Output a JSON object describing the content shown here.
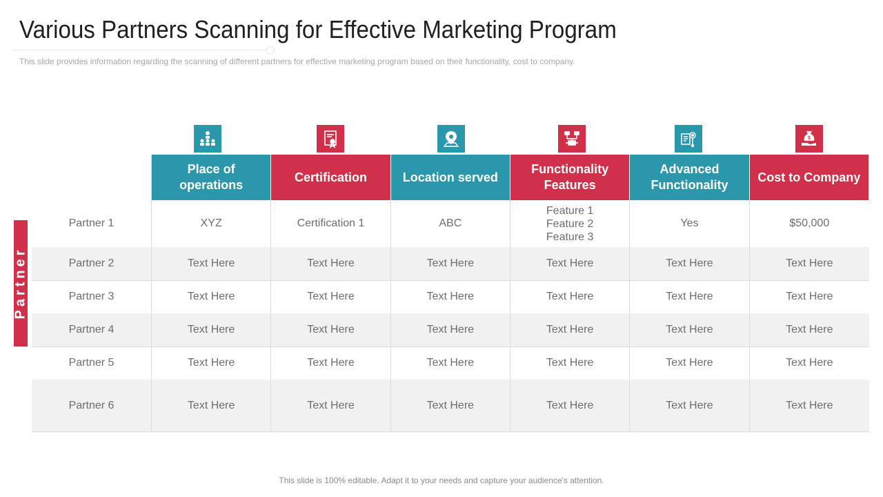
{
  "title": "Various Partners Scanning for Effective Marketing Program",
  "subtitle": "This slide provides  information  regarding  the scanning of  different  partners for effective  marketing program  based on their functionality, cost to company.",
  "colors": {
    "teal": "#2b97ab",
    "red": "#d1304a",
    "shade": "#f1f1f1"
  },
  "columns": [
    {
      "label_l1": "Place of",
      "label_l2": "operations",
      "color": "teal",
      "icon": "people-network-icon"
    },
    {
      "label_l1": "Certification",
      "label_l2": "",
      "color": "red",
      "icon": "certificate-icon"
    },
    {
      "label_l1": "Location served",
      "label_l2": "",
      "color": "teal",
      "icon": "location-pin-icon"
    },
    {
      "label_l1": "Functionality",
      "label_l2": "Features",
      "color": "red",
      "icon": "circuit-board-icon"
    },
    {
      "label_l1": "Advanced",
      "label_l2": "Functionality",
      "color": "teal",
      "icon": "gear-document-icon"
    },
    {
      "label_l1": "Cost to Company",
      "label_l2": "",
      "color": "red",
      "icon": "money-bag-hand-icon"
    }
  ],
  "side_label": "Partner",
  "rows": [
    {
      "name": "Partner 1",
      "cells": [
        "XYZ",
        "Certification 1",
        "ABC",
        [
          "Feature 1",
          "Feature 2",
          "Feature 3"
        ],
        "Yes",
        "$50,000"
      ]
    },
    {
      "name": "Partner 2",
      "cells": [
        "Text Here",
        "Text Here",
        "Text Here",
        "Text Here",
        "Text Here",
        "Text Here"
      ]
    },
    {
      "name": "Partner 3",
      "cells": [
        "Text Here",
        "Text Here",
        "Text Here",
        "Text Here",
        "Text Here",
        "Text Here"
      ]
    },
    {
      "name": "Partner 4",
      "cells": [
        "Text Here",
        "Text Here",
        "Text Here",
        "Text Here",
        "Text Here",
        "Text Here"
      ]
    },
    {
      "name": "Partner 5",
      "cells": [
        "Text Here",
        "Text Here",
        "Text Here",
        "Text Here",
        "Text Here",
        "Text Here"
      ]
    },
    {
      "name": "Partner 6",
      "cells": [
        "Text Here",
        "Text Here",
        "Text Here",
        "Text Here",
        "Text Here",
        "Text Here"
      ]
    }
  ],
  "footer": "This slide is 100% editable. Adapt it to your needs and capture your audience's attention."
}
